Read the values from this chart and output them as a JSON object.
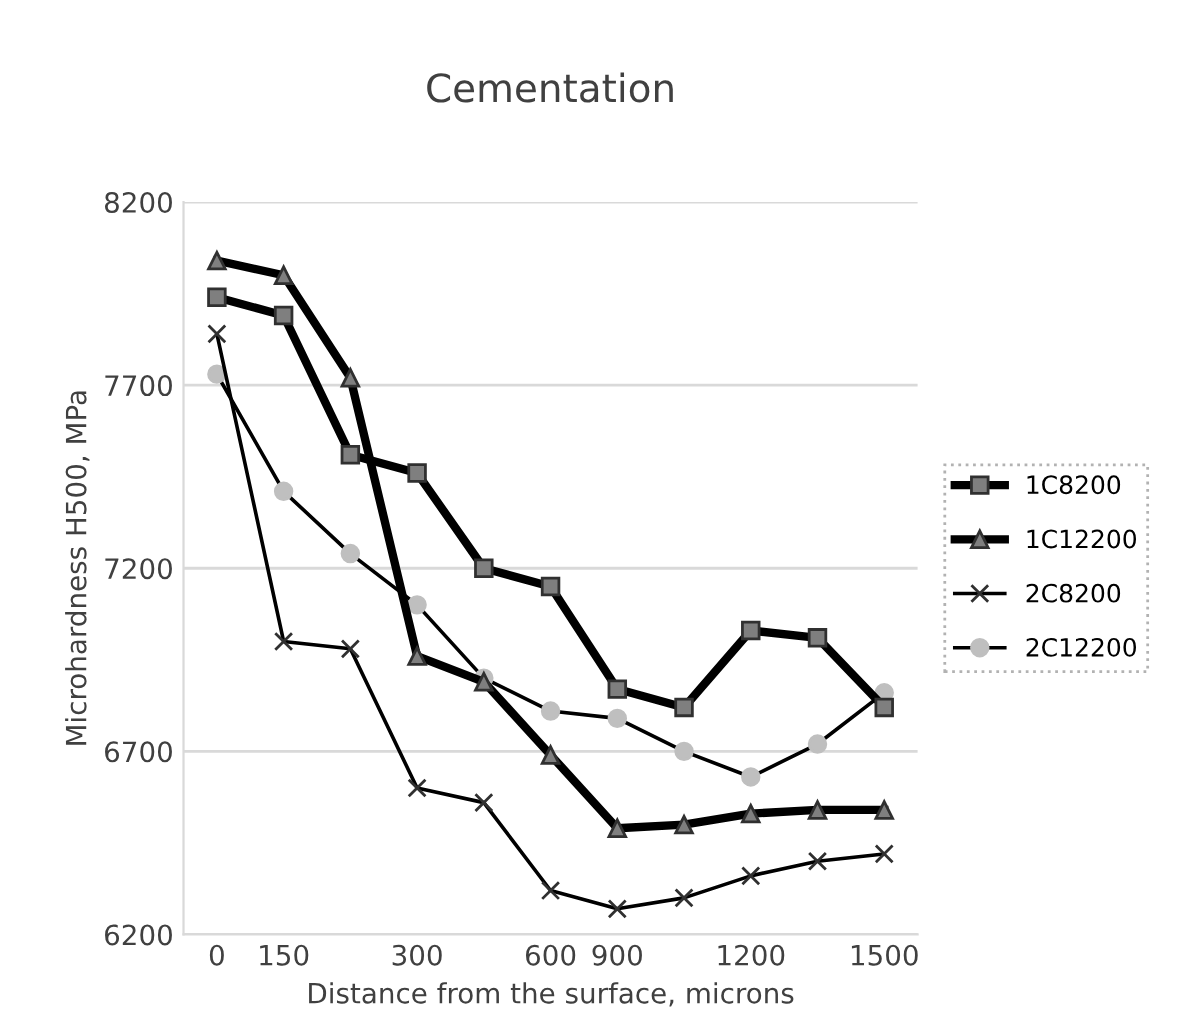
{
  "chart_data": {
    "type": "line",
    "title": "Cementation",
    "xlabel": "Distance from the surface, microns",
    "ylabel": "Microhardness H500, MPa",
    "categories": [
      "0",
      "150",
      null,
      "300",
      null,
      "600",
      "900",
      null,
      "1200",
      null,
      "1500"
    ],
    "series": [
      {
        "name": "1C8200",
        "color": "#000000",
        "marker": "square",
        "values": [
          7940,
          7890,
          7510,
          7460,
          7200,
          7150,
          6870,
          6820,
          7030,
          7010,
          6820
        ]
      },
      {
        "name": "1C12200",
        "color": "#000000",
        "marker": "triangle",
        "values": [
          8040,
          8000,
          7720,
          6960,
          6890,
          6690,
          6490,
          6500,
          6530,
          6540,
          6540
        ]
      },
      {
        "name": "2C8200",
        "color": "#000000",
        "marker": "cross",
        "values": [
          7840,
          7000,
          6980,
          6600,
          6560,
          6320,
          6270,
          6300,
          6360,
          6400,
          6420
        ]
      },
      {
        "name": "2C12200",
        "color": "#bfbfbf",
        "marker": "circle",
        "values": [
          7730,
          7410,
          7240,
          7100,
          6900,
          6810,
          6790,
          6700,
          6630,
          6720,
          6860
        ]
      }
    ],
    "ylim": [
      6200,
      8200
    ],
    "yticks": [
      6200,
      6700,
      7200,
      7700,
      8200
    ],
    "grid": "y",
    "legend": "right"
  }
}
